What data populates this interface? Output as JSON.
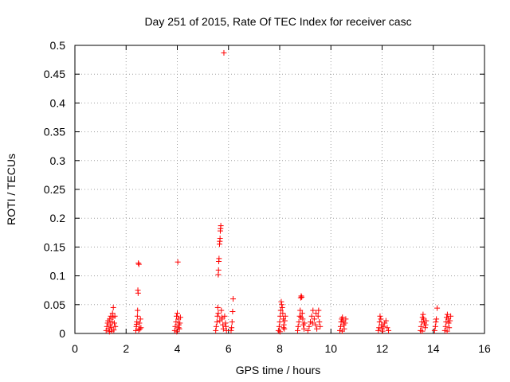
{
  "chart_data": {
    "type": "scatter",
    "title": "Day 251 of 2015, Rate Of TEC Index for receiver casc",
    "xlabel": "GPS time / hours",
    "ylabel": "ROTI / TECUs",
    "xlim": [
      0,
      16
    ],
    "ylim": [
      0,
      0.5
    ],
    "xticks": [
      0,
      2,
      4,
      6,
      8,
      10,
      12,
      14,
      16
    ],
    "xtick_labels": [
      "0",
      "2",
      "4",
      "6",
      "8",
      "10",
      "12",
      "14",
      "16"
    ],
    "yticks": [
      0,
      0.05,
      0.1,
      0.15,
      0.2,
      0.25,
      0.3,
      0.35,
      0.4,
      0.45,
      0.5
    ],
    "ytick_labels": [
      "0",
      "0.05",
      "0.1",
      "0.15",
      "0.2",
      "0.25",
      "0.3",
      "0.35",
      "0.4",
      "0.45",
      "0.5"
    ],
    "grid": true,
    "marker": "+",
    "color": "#ff0000",
    "series": [
      {
        "name": "ROTI",
        "points": [
          [
            1.22,
            0.005
          ],
          [
            1.25,
            0.012
          ],
          [
            1.28,
            0.018
          ],
          [
            1.3,
            0.022
          ],
          [
            1.33,
            0.008
          ],
          [
            1.36,
            0.025
          ],
          [
            1.38,
            0.015
          ],
          [
            1.4,
            0.03
          ],
          [
            1.42,
            0.01
          ],
          [
            1.45,
            0.02
          ],
          [
            1.47,
            0.035
          ],
          [
            1.49,
            0.028
          ],
          [
            1.5,
            0.045
          ],
          [
            1.52,
            0.006
          ],
          [
            1.54,
            0.018
          ],
          [
            1.56,
            0.03
          ],
          [
            1.58,
            0.012
          ],
          [
            1.35,
            0.003
          ],
          [
            1.44,
            0.004
          ],
          [
            2.38,
            0.005
          ],
          [
            2.4,
            0.012
          ],
          [
            2.42,
            0.02
          ],
          [
            2.44,
            0.03
          ],
          [
            2.45,
            0.04
          ],
          [
            2.46,
            0.075
          ],
          [
            2.47,
            0.07
          ],
          [
            2.48,
            0.122
          ],
          [
            2.5,
            0.12
          ],
          [
            2.52,
            0.018
          ],
          [
            2.54,
            0.008
          ],
          [
            2.56,
            0.025
          ],
          [
            2.58,
            0.01
          ],
          [
            2.41,
            0.016
          ],
          [
            2.49,
            0.006
          ],
          [
            3.9,
            0.005
          ],
          [
            3.92,
            0.012
          ],
          [
            3.95,
            0.02
          ],
          [
            3.97,
            0.03
          ],
          [
            4.0,
            0.035
          ],
          [
            4.02,
            0.124
          ],
          [
            4.04,
            0.025
          ],
          [
            4.06,
            0.015
          ],
          [
            4.08,
            0.008
          ],
          [
            4.1,
            0.018
          ],
          [
            4.12,
            0.028
          ],
          [
            3.98,
            0.003
          ],
          [
            4.05,
            0.01
          ],
          [
            5.5,
            0.005
          ],
          [
            5.52,
            0.012
          ],
          [
            5.55,
            0.02
          ],
          [
            5.57,
            0.03
          ],
          [
            5.58,
            0.045
          ],
          [
            5.6,
            0.102
          ],
          [
            5.61,
            0.11
          ],
          [
            5.62,
            0.125
          ],
          [
            5.63,
            0.13
          ],
          [
            5.65,
            0.155
          ],
          [
            5.66,
            0.16
          ],
          [
            5.67,
            0.165
          ],
          [
            5.68,
            0.178
          ],
          [
            5.69,
            0.182
          ],
          [
            5.7,
            0.187
          ],
          [
            5.72,
            0.04
          ],
          [
            5.75,
            0.025
          ],
          [
            5.78,
            0.015
          ],
          [
            5.8,
            0.008
          ],
          [
            5.82,
            0.487
          ],
          [
            5.85,
            0.03
          ],
          [
            5.88,
            0.018
          ],
          [
            5.9,
            0.012
          ],
          [
            5.92,
            0.005
          ],
          [
            5.6,
            0.035
          ],
          [
            5.66,
            0.022
          ],
          [
            5.74,
            0.028
          ],
          [
            6.1,
            0.005
          ],
          [
            6.12,
            0.01
          ],
          [
            6.14,
            0.02
          ],
          [
            6.16,
            0.038
          ],
          [
            6.18,
            0.06
          ],
          [
            7.95,
            0.005
          ],
          [
            7.98,
            0.012
          ],
          [
            8.0,
            0.02
          ],
          [
            8.02,
            0.03
          ],
          [
            8.04,
            0.04
          ],
          [
            8.06,
            0.055
          ],
          [
            8.08,
            0.05
          ],
          [
            8.1,
            0.045
          ],
          [
            8.12,
            0.035
          ],
          [
            8.14,
            0.025
          ],
          [
            8.16,
            0.015
          ],
          [
            8.18,
            0.008
          ],
          [
            8.2,
            0.022
          ],
          [
            8.22,
            0.03
          ],
          [
            8.01,
            0.003
          ],
          [
            8.15,
            0.01
          ],
          [
            8.7,
            0.005
          ],
          [
            8.72,
            0.012
          ],
          [
            8.75,
            0.02
          ],
          [
            8.78,
            0.03
          ],
          [
            8.8,
            0.04
          ],
          [
            8.82,
            0.062
          ],
          [
            8.84,
            0.065
          ],
          [
            8.86,
            0.063
          ],
          [
            8.88,
            0.035
          ],
          [
            8.9,
            0.025
          ],
          [
            8.92,
            0.015
          ],
          [
            8.95,
            0.008
          ],
          [
            8.97,
            0.018
          ],
          [
            8.83,
            0.028
          ],
          [
            9.1,
            0.005
          ],
          [
            9.15,
            0.012
          ],
          [
            9.2,
            0.02
          ],
          [
            9.25,
            0.03
          ],
          [
            9.3,
            0.04
          ],
          [
            9.35,
            0.025
          ],
          [
            9.4,
            0.015
          ],
          [
            9.45,
            0.008
          ],
          [
            9.5,
            0.03
          ],
          [
            9.52,
            0.04
          ],
          [
            9.55,
            0.02
          ],
          [
            9.58,
            0.012
          ],
          [
            9.28,
            0.018
          ],
          [
            9.42,
            0.035
          ],
          [
            10.35,
            0.005
          ],
          [
            10.38,
            0.012
          ],
          [
            10.4,
            0.02
          ],
          [
            10.42,
            0.025
          ],
          [
            10.45,
            0.028
          ],
          [
            10.48,
            0.022
          ],
          [
            10.5,
            0.015
          ],
          [
            10.52,
            0.008
          ],
          [
            10.55,
            0.018
          ],
          [
            10.58,
            0.025
          ],
          [
            10.44,
            0.004
          ],
          [
            11.85,
            0.005
          ],
          [
            11.88,
            0.01
          ],
          [
            11.9,
            0.02
          ],
          [
            11.92,
            0.03
          ],
          [
            11.95,
            0.025
          ],
          [
            11.98,
            0.015
          ],
          [
            12.0,
            0.008
          ],
          [
            12.05,
            0.012
          ],
          [
            12.1,
            0.018
          ],
          [
            12.15,
            0.022
          ],
          [
            12.2,
            0.01
          ],
          [
            12.25,
            0.005
          ],
          [
            12.02,
            0.004
          ],
          [
            13.5,
            0.005
          ],
          [
            13.52,
            0.012
          ],
          [
            13.55,
            0.02
          ],
          [
            13.58,
            0.028
          ],
          [
            13.6,
            0.033
          ],
          [
            13.62,
            0.025
          ],
          [
            13.65,
            0.018
          ],
          [
            13.68,
            0.01
          ],
          [
            13.7,
            0.015
          ],
          [
            13.72,
            0.022
          ],
          [
            13.57,
            0.004
          ],
          [
            14.05,
            0.005
          ],
          [
            14.08,
            0.012
          ],
          [
            14.1,
            0.02
          ],
          [
            14.12,
            0.025
          ],
          [
            14.15,
            0.044
          ],
          [
            14.45,
            0.005
          ],
          [
            14.48,
            0.012
          ],
          [
            14.5,
            0.02
          ],
          [
            14.52,
            0.028
          ],
          [
            14.55,
            0.033
          ],
          [
            14.58,
            0.025
          ],
          [
            14.6,
            0.018
          ],
          [
            14.62,
            0.01
          ],
          [
            14.65,
            0.022
          ],
          [
            14.68,
            0.03
          ],
          [
            14.54,
            0.004
          ]
        ]
      }
    ]
  }
}
